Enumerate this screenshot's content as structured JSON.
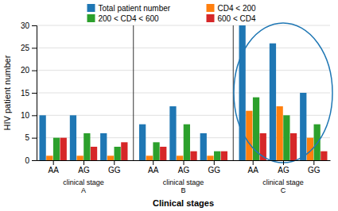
{
  "chart_data": {
    "type": "bar",
    "xlabel": "Clinical stages",
    "ylabel": "HIV patient number",
    "categories": [
      "AA",
      "AG",
      "GG",
      "AA",
      "AG",
      "GG",
      "AA",
      "AG",
      "GG"
    ],
    "annotations": [
      "clinical stage\nA",
      "clinical stage\nB",
      "clinical stage\nC"
    ],
    "series": [
      {
        "name": "Total patient number",
        "values": [
          10,
          10,
          6,
          8,
          12,
          6,
          30,
          26,
          15
        ]
      },
      {
        "name": "CD4 < 200",
        "values": [
          1,
          1,
          1,
          1,
          1,
          1,
          11,
          12,
          5
        ]
      },
      {
        "name": "200 < CD4 < 600",
        "values": [
          5,
          6,
          3,
          4,
          8,
          2,
          14,
          10,
          8
        ]
      },
      {
        "name": "600 < CD4",
        "values": [
          5,
          3,
          4,
          3,
          2,
          2,
          6,
          6,
          2
        ]
      }
    ],
    "ylim": [
      0,
      30
    ],
    "yticks": [
      0,
      5,
      10,
      15,
      20,
      25,
      30
    ],
    "grid": true,
    "legend": "top"
  }
}
